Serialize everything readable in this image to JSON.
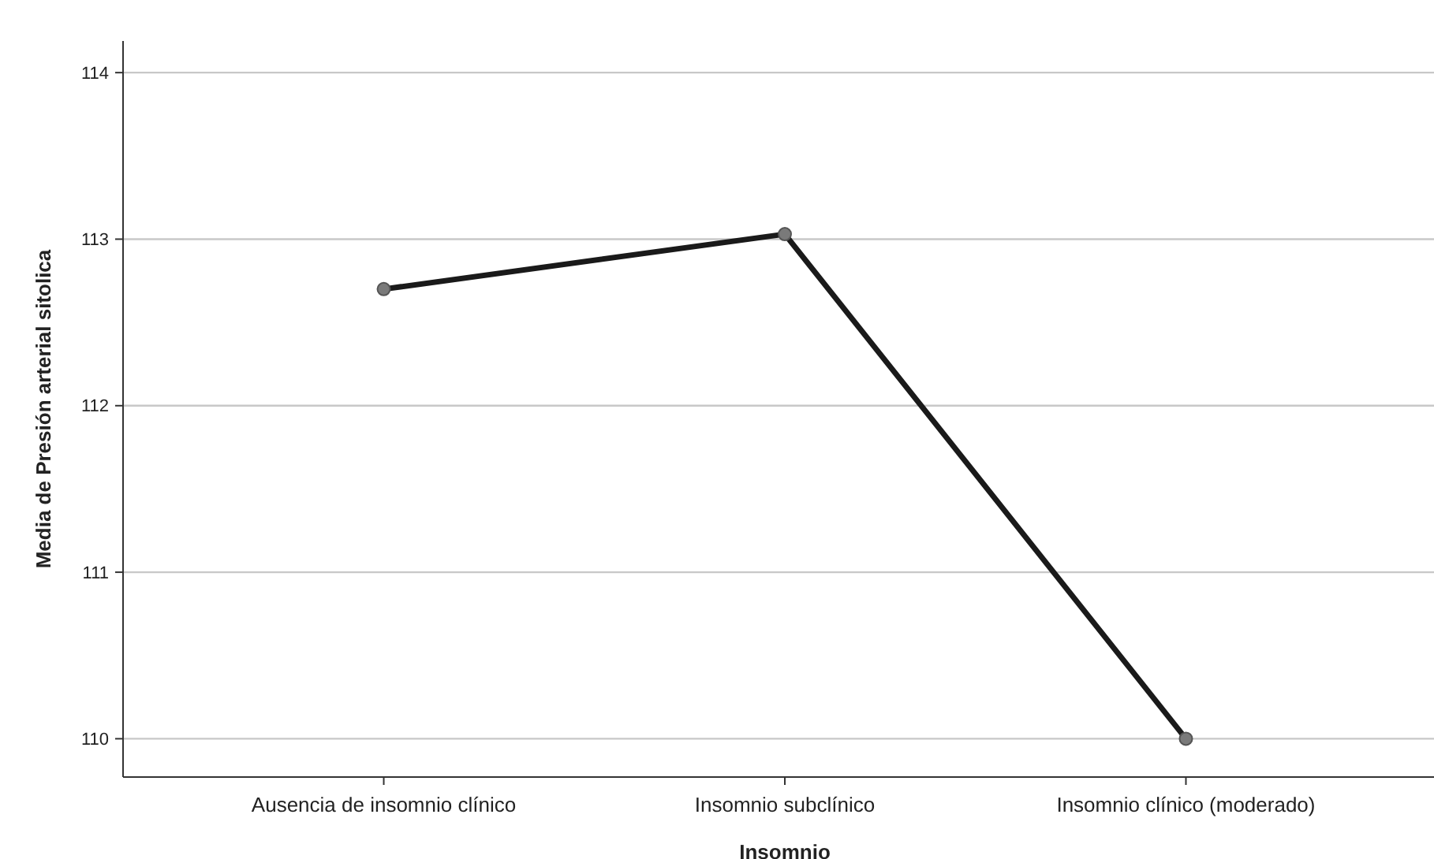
{
  "chart_data": {
    "type": "line",
    "xlabel": "Insomnio",
    "ylabel": "Media de Presión arterial sitolica",
    "categories": [
      "Ausencia de insomnio clínico",
      "Insomnio subclínico",
      "Insomnio clínico (moderado)"
    ],
    "series": [
      {
        "color": "#1a1a1a",
        "values": [
          112.7,
          113.03,
          110.0
        ]
      }
    ],
    "ylim": [
      109.77,
      114.19
    ],
    "yticks": [
      110,
      111,
      112,
      113,
      114
    ],
    "grid": "y",
    "marker": "circle",
    "line_style": "solid"
  }
}
